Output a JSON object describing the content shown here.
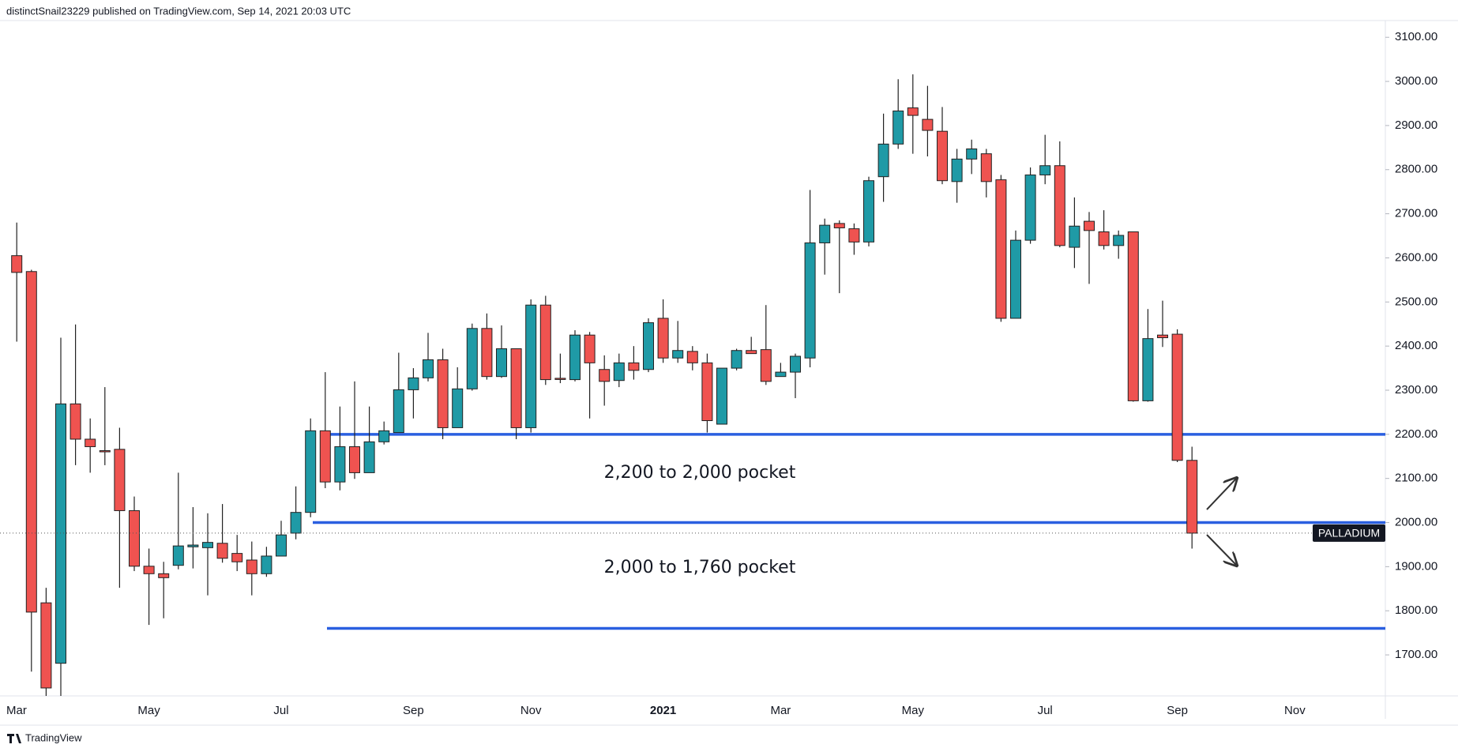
{
  "chart_data": {
    "type": "candlestick",
    "header": "distinctSnail23229 published on TradingView.com, Sep 14, 2021 20:03 UTC",
    "footer": "TradingView",
    "symbol_label": "PALLADIUM",
    "up_color": "#1f9aa6",
    "down_color": "#ef5350",
    "level_color": "#2a5fe0",
    "grid": false,
    "categories": [
      "Mar",
      null,
      null,
      null,
      null,
      null,
      null,
      null,
      null,
      "May",
      null,
      null,
      null,
      null,
      null,
      null,
      null,
      null,
      "Jul",
      null,
      null,
      null,
      null,
      null,
      null,
      null,
      null,
      "Sep",
      null,
      null,
      null,
      null,
      null,
      null,
      null,
      "Nov",
      null,
      null,
      null,
      null,
      null,
      null,
      null,
      null,
      "2021",
      null,
      null,
      null,
      null,
      null,
      null,
      null,
      "Mar",
      null,
      null,
      null,
      null,
      null,
      null,
      null,
      null,
      "May",
      null,
      null,
      null,
      null,
      null,
      null,
      null,
      null,
      "Jul",
      null,
      null,
      null,
      null,
      null,
      null,
      null,
      null,
      "Sep",
      null,
      null,
      null,
      null,
      null,
      null,
      null,
      "Nov"
    ],
    "open": [
      2605,
      2569,
      1818,
      1681,
      2269,
      2189,
      2163,
      2166,
      2027,
      1901,
      1884,
      1903,
      1945,
      1943,
      1953,
      1930,
      1915,
      1884,
      1924,
      1976,
      2023,
      2208,
      2092,
      2172,
      2113,
      2183,
      2204,
      2301,
      2328,
      2369,
      2215,
      2303,
      2440,
      2331,
      2394,
      2215,
      2493,
      2327,
      2324,
      2425,
      2347,
      2322,
      2362,
      2347,
      2463,
      2373,
      2388,
      2362,
      2223,
      2350,
      2390,
      2392,
      2331,
      2341,
      2373,
      2634,
      2678,
      2666,
      2636,
      2784,
      2858,
      2940,
      2914,
      2887,
      2773,
      2824,
      2836,
      2777,
      2463,
      2640,
      2788,
      2809,
      2624,
      2683,
      2659,
      2628,
      2659,
      2276,
      2425,
      2427,
      2141,
      null,
      null,
      null,
      null,
      null,
      null,
      null
    ],
    "high": [
      2680,
      2573,
      1852,
      2419,
      2449,
      2236,
      2307,
      2215,
      2059,
      1941,
      1911,
      2113,
      2035,
      2021,
      2042,
      1972,
      1957,
      1945,
      2004,
      2082,
      2236,
      2341,
      2263,
      2320,
      2263,
      2229,
      2385,
      2350,
      2430,
      2394,
      2352,
      2451,
      2474,
      2447,
      2394,
      2506,
      2514,
      2383,
      2436,
      2432,
      2379,
      2383,
      2400,
      2463,
      2506,
      2457,
      2400,
      2383,
      2350,
      2394,
      2421,
      2493,
      2362,
      2383,
      2754,
      2689,
      2685,
      2678,
      2784,
      2927,
      3005,
      3016,
      2990,
      2942,
      2847,
      2868,
      2847,
      2788,
      2662,
      2805,
      2879,
      2864,
      2737,
      2704,
      2708,
      2662,
      2659,
      2484,
      2503,
      2438,
      2172,
      null,
      null,
      null,
      null,
      null,
      null,
      null
    ],
    "low": [
      2410,
      1662,
      1600,
      1600,
      2130,
      2113,
      2130,
      1852,
      1890,
      1768,
      1783,
      1894,
      1896,
      1835,
      1909,
      1890,
      1835,
      1877,
      1928,
      1962,
      2012,
      2078,
      2073,
      2099,
      2113,
      2177,
      2204,
      2236,
      2320,
      2189,
      2215,
      2299,
      2324,
      2328,
      2189,
      2204,
      2312,
      2316,
      2320,
      2236,
      2265,
      2307,
      2324,
      2341,
      2362,
      2362,
      2345,
      2204,
      2223,
      2345,
      2383,
      2312,
      2331,
      2282,
      2352,
      2562,
      2520,
      2607,
      2626,
      2727,
      2847,
      2836,
      2830,
      2767,
      2725,
      2790,
      2737,
      2455,
      2463,
      2632,
      2767,
      2624,
      2577,
      2541,
      2619,
      2598,
      2274,
      2274,
      2398,
      2137,
      1941,
      null,
      null,
      null,
      null,
      null,
      null,
      null
    ],
    "close": [
      2567,
      1797,
      1625,
      2269,
      2189,
      2172,
      2161,
      2027,
      1901,
      1884,
      1875,
      1947,
      1949,
      1955,
      1919,
      1911,
      1884,
      1924,
      1972,
      2023,
      2208,
      2092,
      2172,
      2113,
      2183,
      2208,
      2301,
      2328,
      2369,
      2215,
      2303,
      2440,
      2331,
      2394,
      2215,
      2493,
      2324,
      2326,
      2425,
      2362,
      2320,
      2362,
      2345,
      2453,
      2373,
      2390,
      2362,
      2231,
      2350,
      2390,
      2383,
      2320,
      2341,
      2377,
      2634,
      2674,
      2668,
      2636,
      2775,
      2858,
      2933,
      2923,
      2889,
      2775,
      2824,
      2847,
      2773,
      2463,
      2640,
      2788,
      2809,
      2628,
      2672,
      2662,
      2628,
      2651,
      2276,
      2417,
      2419,
      2141,
      1976,
      null,
      null,
      null,
      null,
      null,
      null,
      null
    ],
    "levels": [
      2200,
      2000,
      1760
    ],
    "annotations": [
      "2,200 to 2,000 pocket",
      "2,000 to 1,760 pocket"
    ],
    "ylim": [
      1607,
      3138
    ],
    "yticks": [
      {
        "value": 1700,
        "label": "1700.00"
      },
      {
        "value": 1800,
        "label": "1800.00"
      },
      {
        "value": 1900,
        "label": "1900.00"
      },
      {
        "value": 2000,
        "label": "2000.00"
      },
      {
        "value": 2100,
        "label": "2100.00"
      },
      {
        "value": 2200,
        "label": "2200.00"
      },
      {
        "value": 2300,
        "label": "2300.00"
      },
      {
        "value": 2400,
        "label": "2400.00"
      },
      {
        "value": 2500,
        "label": "2500.00"
      },
      {
        "value": 2600,
        "label": "2600.00"
      },
      {
        "value": 2700,
        "label": "2700.00"
      },
      {
        "value": 2800,
        "label": "2800.00"
      },
      {
        "value": 2900,
        "label": "2900.00"
      },
      {
        "value": 3000,
        "label": "3000.00"
      },
      {
        "value": 3100,
        "label": "3100.00"
      }
    ]
  }
}
